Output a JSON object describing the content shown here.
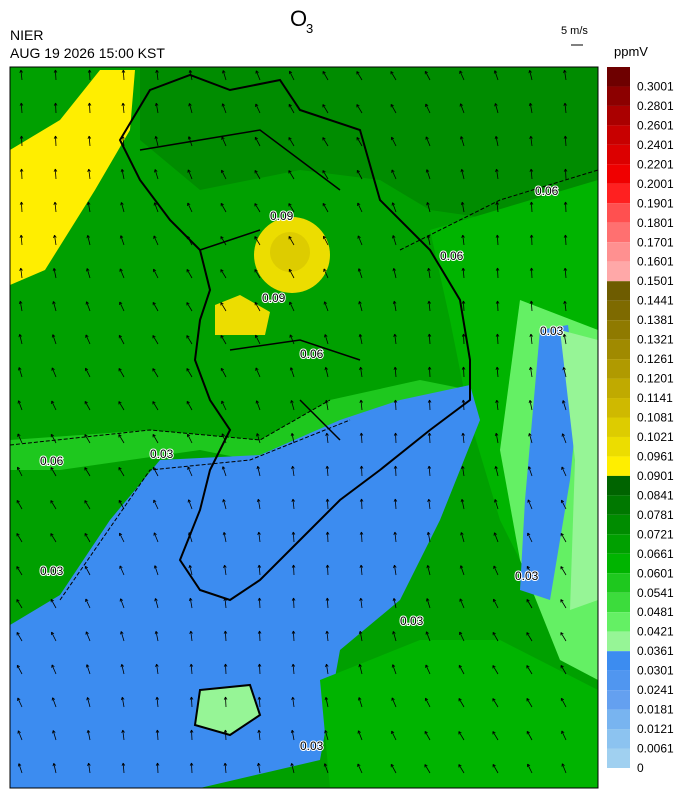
{
  "header": {
    "title": "O",
    "title_subscript": "3",
    "agency": "NIER",
    "timestamp": "AUG 19 2026 15:00 KST",
    "wind_scale": "5 m/s",
    "unit": "ppmV"
  },
  "colorbar": [
    {
      "value": 0.3001,
      "color": "#6e0000"
    },
    {
      "value": 0.2801,
      "color": "#8c0000"
    },
    {
      "value": 0.2601,
      "color": "#aa0000"
    },
    {
      "value": 0.2401,
      "color": "#c80000"
    },
    {
      "value": 0.2201,
      "color": "#dc0000"
    },
    {
      "value": 0.2001,
      "color": "#f00000"
    },
    {
      "value": 0.1901,
      "color": "#ff2020"
    },
    {
      "value": 0.1801,
      "color": "#ff5050"
    },
    {
      "value": 0.1701,
      "color": "#ff7070"
    },
    {
      "value": 0.1601,
      "color": "#ff9090"
    },
    {
      "value": 0.1501,
      "color": "#ffa8a8"
    },
    {
      "value": 0.1441,
      "color": "#6e5c00"
    },
    {
      "value": 0.1381,
      "color": "#7e6a00"
    },
    {
      "value": 0.1321,
      "color": "#8f7a00"
    },
    {
      "value": 0.1261,
      "color": "#a08a00"
    },
    {
      "value": 0.1201,
      "color": "#b09a00"
    },
    {
      "value": 0.1141,
      "color": "#c0aa00"
    },
    {
      "value": 0.1081,
      "color": "#cfb900"
    },
    {
      "value": 0.1021,
      "color": "#ddcc00"
    },
    {
      "value": 0.0961,
      "color": "#ecdd00"
    },
    {
      "value": 0.0901,
      "color": "#ffee00"
    },
    {
      "value": 0.0841,
      "color": "#006400"
    },
    {
      "value": 0.0781,
      "color": "#007800"
    },
    {
      "value": 0.0721,
      "color": "#008c00"
    },
    {
      "value": 0.0661,
      "color": "#00a000"
    },
    {
      "value": 0.0601,
      "color": "#00b400"
    },
    {
      "value": 0.0541,
      "color": "#1ec81e"
    },
    {
      "value": 0.0481,
      "color": "#3cdc3c"
    },
    {
      "value": 0.0421,
      "color": "#64f064"
    },
    {
      "value": 0.0361,
      "color": "#96f596"
    },
    {
      "value": 0.0301,
      "color": "#3c8cf0"
    },
    {
      "value": 0.0241,
      "color": "#5096f0"
    },
    {
      "value": 0.0181,
      "color": "#64a0f0"
    },
    {
      "value": 0.0121,
      "color": "#78b4f0"
    },
    {
      "value": 0.0061,
      "color": "#8cc3f0"
    },
    {
      "value": 0,
      "color": "#a0d0f0"
    }
  ],
  "contour_labels": [
    "0.06",
    "0.03",
    "0.09"
  ]
}
